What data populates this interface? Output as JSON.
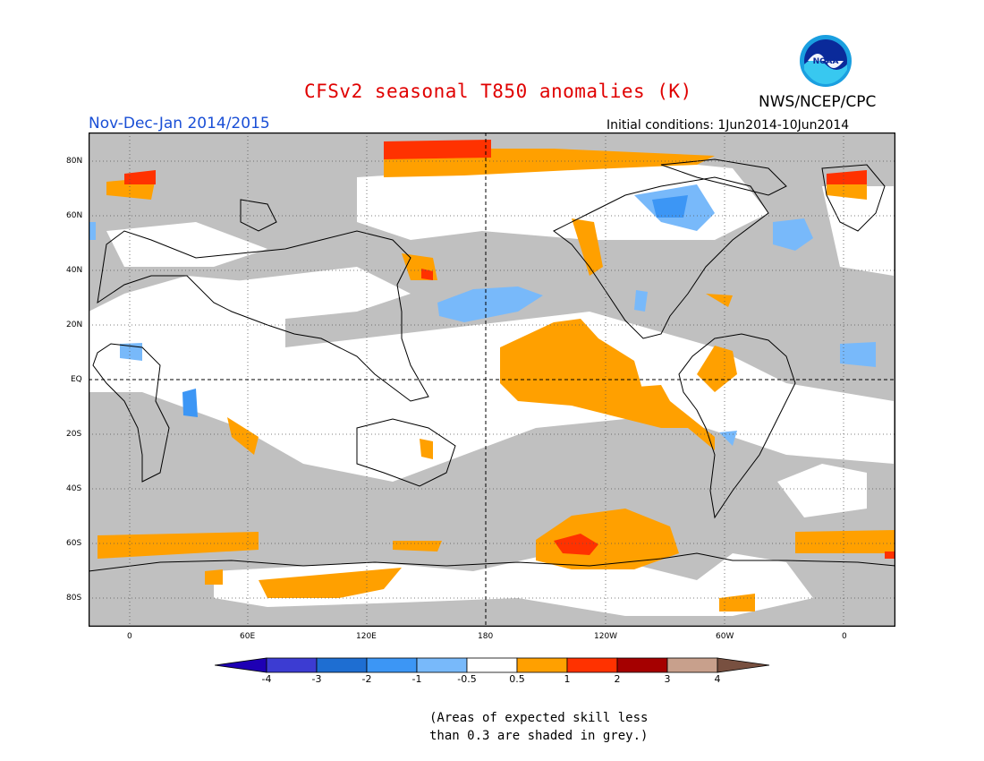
{
  "header": {
    "title": "CFSv2 seasonal T850 anomalies (K)",
    "agency": "NWS/NCEP/CPC",
    "season": "Nov-Dec-Jan 2014/2015",
    "initial_conditions": "Initial conditions: 1Jun2014-10Jun2014"
  },
  "logo": {
    "text": "NOAA",
    "icon": "noaa-logo-icon"
  },
  "map": {
    "lat_labels": [
      "80N",
      "60N",
      "40N",
      "20N",
      "EQ",
      "20S",
      "40S",
      "60S",
      "80S"
    ],
    "lon_labels": [
      "0",
      "60E",
      "120E",
      "180",
      "120W",
      "60W",
      "0"
    ],
    "colors": {
      "grey_mask": "#c0c0c0",
      "ocean_white": "#ffffff",
      "orange": "#ffa000",
      "red_orange": "#ff3200",
      "light_blue": "#78b9fa",
      "medium_blue": "#3c96f5",
      "coast": "#000000"
    }
  },
  "colorbar": {
    "labels": [
      "-4",
      "-3",
      "-2",
      "-1",
      "-0.5",
      "0.5",
      "1",
      "2",
      "3",
      "4"
    ],
    "colors": [
      "#1e00b4",
      "#3c3cd2",
      "#1e6ed2",
      "#3c96f5",
      "#78b9fa",
      "#ffffff",
      "#ffa000",
      "#ff3200",
      "#a50000",
      "#c8a08c",
      "#785040"
    ]
  },
  "footnote": {
    "line1": "(Areas of expected skill less",
    "line2": "than 0.3 are shaded in grey.)"
  }
}
